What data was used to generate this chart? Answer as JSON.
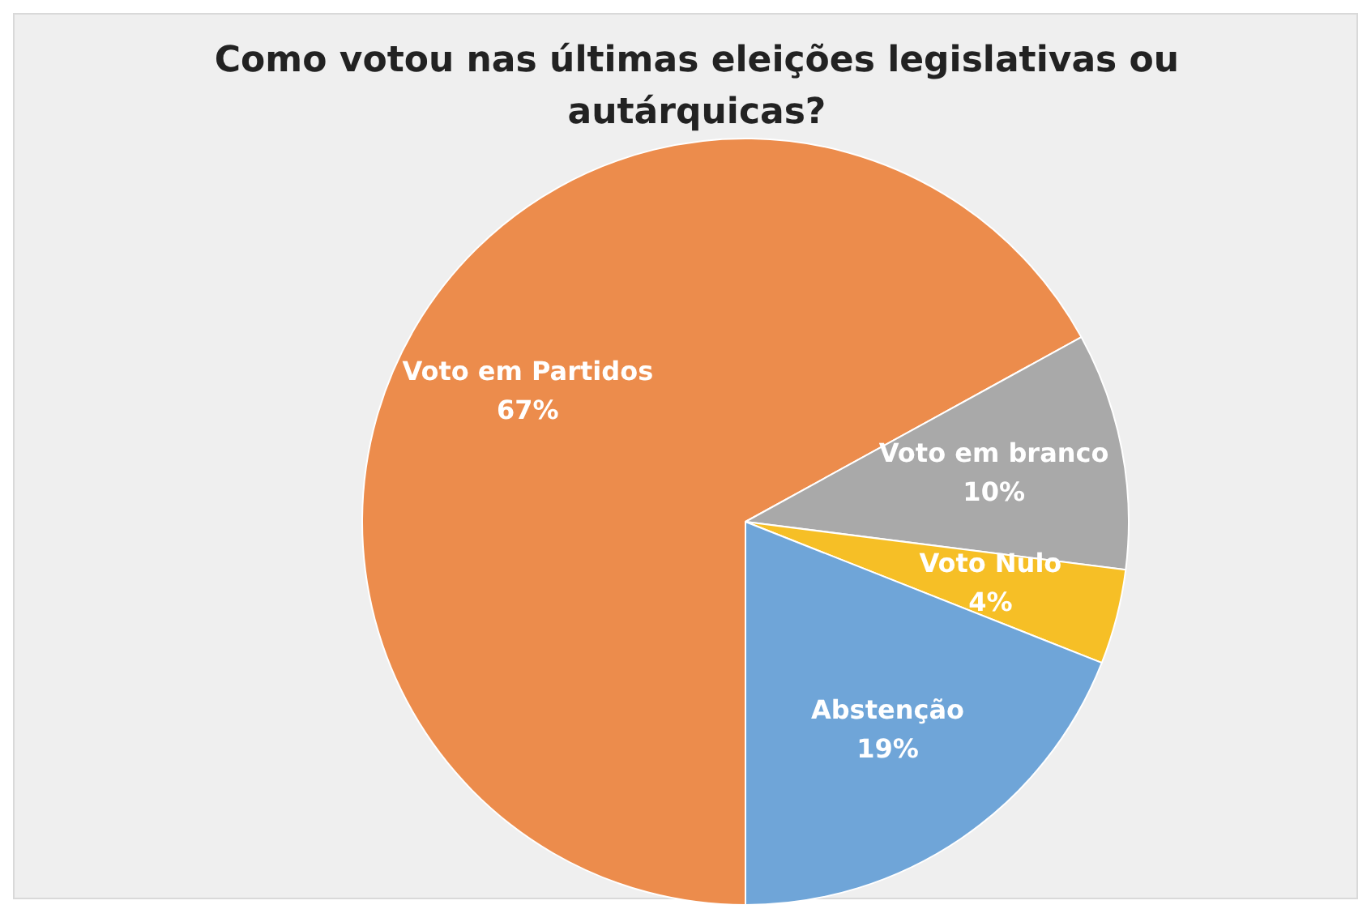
{
  "chart_data": {
    "type": "pie",
    "title": "Como votou nas últimas eleições legislativas ou autárquicas?",
    "categories": [
      "Voto em Partidos",
      "Voto em branco",
      "Voto Nulo",
      "Abstenção"
    ],
    "values": [
      67,
      10,
      4,
      19
    ],
    "colors": [
      "#ec8c4c",
      "#a9a9a9",
      "#f6bf26",
      "#6fa5d8"
    ],
    "value_labels": [
      "67%",
      "10%",
      "4%",
      "19%"
    ],
    "legend": false
  }
}
